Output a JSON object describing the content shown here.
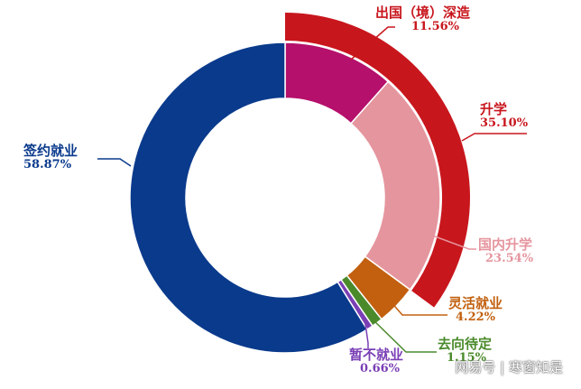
{
  "chart_data": {
    "type": "pie",
    "variant": "nested-donut",
    "title": "",
    "inner_ring": [
      {
        "label": "签约就业",
        "value": 58.87,
        "display": "58.87%",
        "color": "#0a3a8c"
      },
      {
        "label": "出国（境）深造",
        "value": 11.56,
        "display": "11.56%",
        "color": "#b5106b"
      },
      {
        "label": "国内升学",
        "value": 23.54,
        "display": "23.54%",
        "color": "#e5959e"
      },
      {
        "label": "灵活就业",
        "value": 4.22,
        "display": "4.22%",
        "color": "#c2600f"
      },
      {
        "label": "去向待定",
        "value": 1.15,
        "display": "1.15%",
        "color": "#4a8a2b"
      },
      {
        "label": "暂不就业",
        "value": 0.66,
        "display": "0.66%",
        "color": "#7a3fb5"
      }
    ],
    "outer_ring": [
      {
        "label": "升学",
        "value": 35.1,
        "display": "35.10%",
        "color": "#c8161d",
        "covers": [
          "出国（境）深造",
          "国内升学"
        ]
      }
    ]
  },
  "watermark": "网易号 | 寒窗知是"
}
